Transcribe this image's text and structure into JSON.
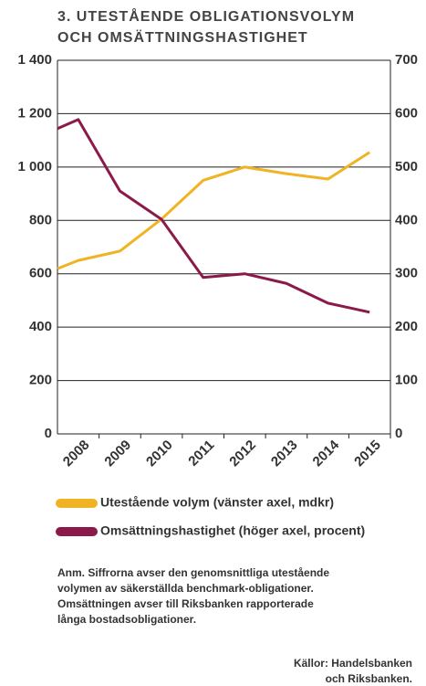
{
  "chart_data": {
    "type": "line",
    "title_lines": [
      "3. UTESTÅENDE OBLIGATIONSVOLYM",
      "OCH OMSÄTTNINGSHASTIGHET"
    ],
    "x": [
      2007.5,
      2008,
      2009,
      2010,
      2011,
      2012,
      2013,
      2014,
      2015
    ],
    "xlim": [
      2007.5,
      2015.5
    ],
    "xticks": [
      2008,
      2009,
      2010,
      2011,
      2012,
      2013,
      2014,
      2015
    ],
    "ylim": [
      0,
      1400
    ],
    "yticks": [
      0,
      200,
      400,
      600,
      800,
      {
        "value": 1000,
        "label": "1 000"
      },
      {
        "value": 1200,
        "label": "1 200"
      },
      {
        "value": 1400,
        "label": "1 400"
      }
    ],
    "y2lim": [
      0,
      700
    ],
    "y2ticks": [
      0,
      100,
      200,
      300,
      400,
      500,
      600,
      700
    ],
    "grid": true,
    "series": [
      {
        "name": "Utestående volym (vänster axel, mdkr)",
        "color": "#f0b323",
        "values": [
          619,
          650,
          685,
          805,
          950,
          1000,
          975,
          955,
          1055
        ]
      },
      {
        "name": "Omsättningshastighet (höger axel, procent)",
        "color": "#8b1a4a",
        "axis": "y2",
        "values": [
          572,
          589,
          455,
          402,
          293,
          300,
          282,
          245,
          228
        ]
      }
    ],
    "note_lines": [
      "Anm. Siffrorna avser den genomsnittliga utestående",
      "volymen av säkerställda benchmark-obligationer.",
      "Omsättningen avser till Riksbanken rapporterade",
      "långa bostadsobligationer."
    ],
    "source_lines": [
      "Källor: Handelsbanken",
      "och Riksbanken."
    ]
  }
}
